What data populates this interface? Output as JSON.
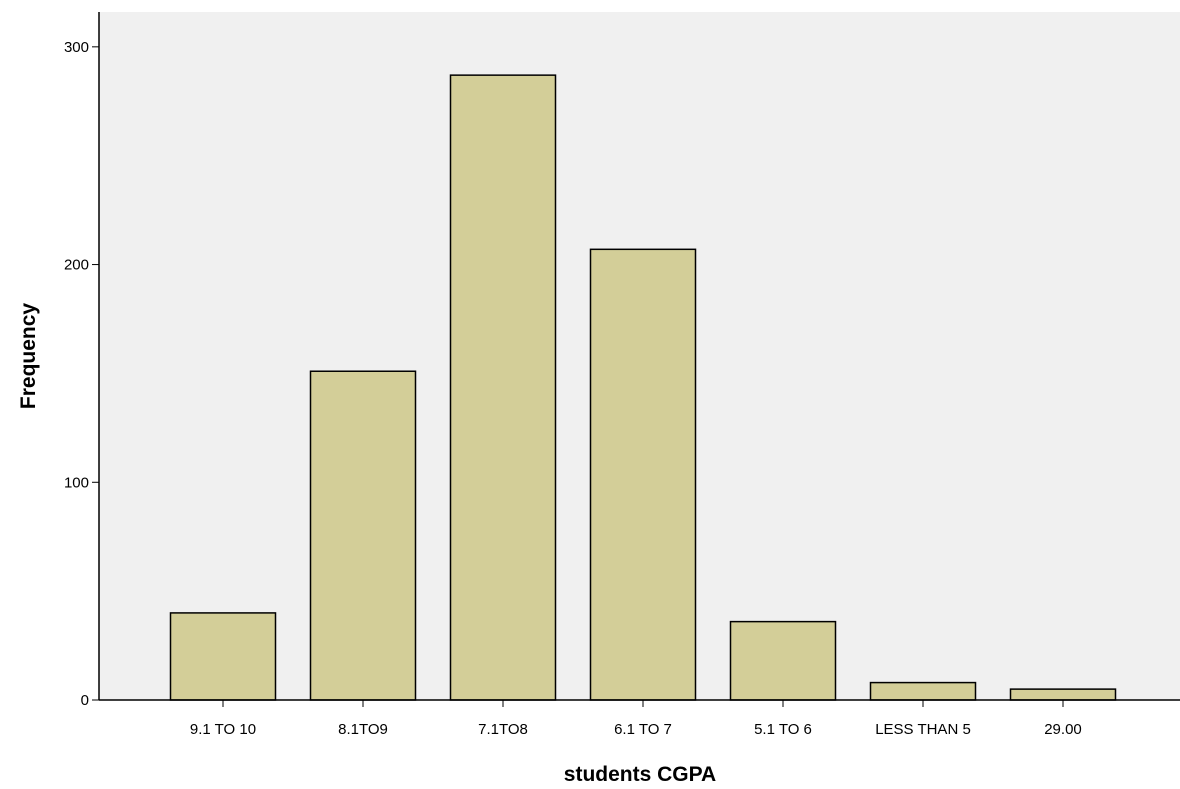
{
  "chart_data": {
    "type": "bar",
    "title": "",
    "xlabel": "students CGPA",
    "ylabel": "Frequency",
    "categories": [
      "9.1 TO 10",
      "8.1TO9",
      "7.1TO8",
      "6.1 TO 7",
      "5.1 TO 6",
      "LESS THAN 5",
      "29.00"
    ],
    "values": [
      40,
      151,
      287,
      207,
      36,
      8,
      5
    ],
    "ylim": [
      0,
      316
    ],
    "yticks": [
      0,
      100,
      200,
      300
    ],
    "grid": false,
    "legend": "none",
    "colors": {
      "bar": "#d3ce98",
      "plot_background": "#f0f0f0",
      "stroke": "#000000"
    }
  }
}
